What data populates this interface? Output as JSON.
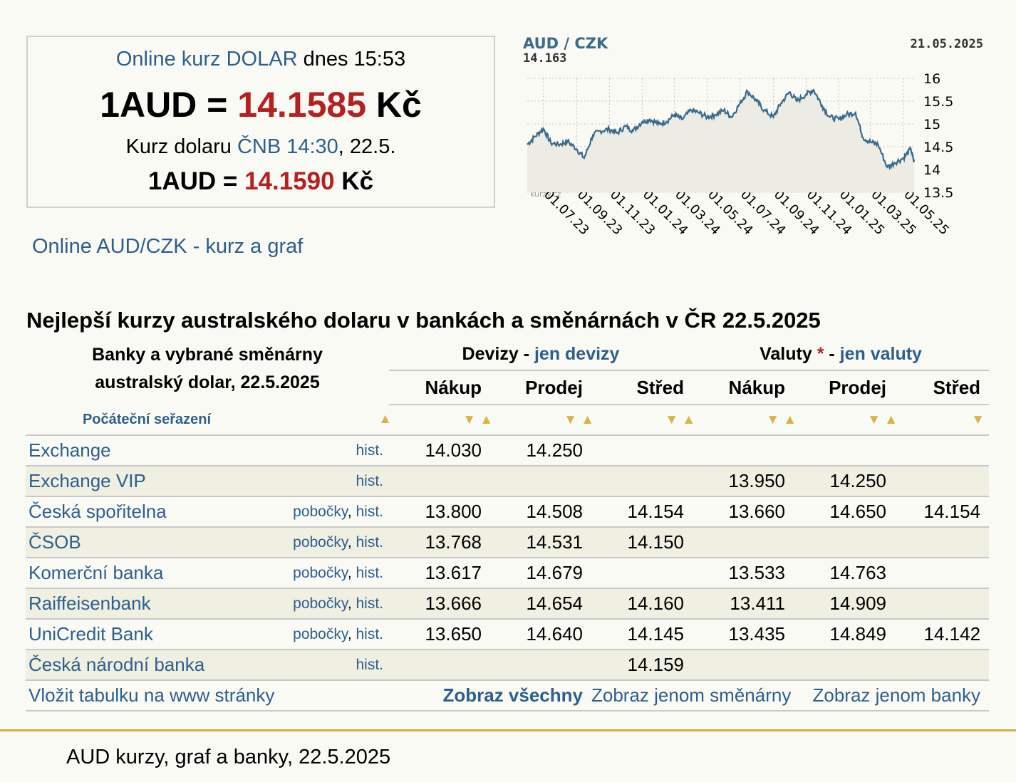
{
  "rate_box": {
    "line1_link": "Online kurz DOLAR",
    "line1_rest": " dnes 15:53",
    "online_left": "1AUD = ",
    "online_value": "14.1585",
    "online_unit": " Kč",
    "line3_pre": "Kurz dolaru ",
    "line3_link": "ČNB 14:30",
    "line3_post": ", 22.5.",
    "cnb_left": "1AUD = ",
    "cnb_value": "14.1590",
    "cnb_unit": " Kč"
  },
  "online_link": "Online AUD/CZK - kurz a graf",
  "chart_data": {
    "type": "line",
    "title": "AUD / CZK",
    "current_value": "14.163",
    "date": "21.05.2025",
    "watermark": "AUD / CZK",
    "logo": "kurzy.cz",
    "x_ticks": [
      "01.07.23",
      "01.09.23",
      "01.11.23",
      "01.01.24",
      "01.03.24",
      "01.05.24",
      "01.07.24",
      "01.09.24",
      "01.11.24",
      "01.01.25",
      "01.03.25",
      "01.05.25"
    ],
    "y_ticks": [
      "16",
      "15.5",
      "15",
      "14.5",
      "14",
      "13.5"
    ],
    "ylim": [
      13.5,
      16
    ],
    "grid": true,
    "line_color": "#3a6a8c",
    "x": [
      "2023-06-01",
      "2023-06-15",
      "2023-07-01",
      "2023-07-15",
      "2023-08-01",
      "2023-08-15",
      "2023-09-01",
      "2023-09-15",
      "2023-10-01",
      "2023-10-15",
      "2023-11-01",
      "2023-11-15",
      "2023-12-01",
      "2023-12-15",
      "2024-01-01",
      "2024-01-15",
      "2024-02-01",
      "2024-02-15",
      "2024-03-01",
      "2024-03-15",
      "2024-04-01",
      "2024-04-15",
      "2024-05-01",
      "2024-05-15",
      "2024-06-01",
      "2024-06-15",
      "2024-07-01",
      "2024-07-15",
      "2024-08-01",
      "2024-08-15",
      "2024-09-01",
      "2024-09-15",
      "2024-10-01",
      "2024-10-15",
      "2024-11-01",
      "2024-11-15",
      "2024-12-01",
      "2024-12-15",
      "2025-01-01",
      "2025-01-15",
      "2025-02-01",
      "2025-02-15",
      "2025-03-01",
      "2025-03-15",
      "2025-04-01",
      "2025-04-15",
      "2025-05-01",
      "2025-05-15",
      "2025-05-21"
    ],
    "values": [
      14.55,
      14.72,
      14.9,
      14.58,
      14.55,
      14.62,
      14.45,
      14.25,
      14.75,
      14.85,
      14.88,
      14.8,
      14.95,
      14.85,
      15.05,
      15.1,
      15.0,
      15.05,
      15.2,
      15.1,
      15.3,
      15.25,
      15.15,
      15.2,
      15.3,
      15.15,
      15.45,
      15.72,
      15.5,
      15.3,
      15.15,
      15.45,
      15.7,
      15.5,
      15.65,
      15.75,
      15.4,
      15.15,
      15.1,
      15.2,
      15.25,
      14.7,
      14.6,
      14.55,
      14.05,
      14.15,
      14.25,
      14.45,
      14.163
    ]
  },
  "section_title": "Nejlepší kurzy australského dolaru v bankách a směnárnách v ČR 22.5.2025",
  "table": {
    "head_line1": "Banky a vybrané směnárny",
    "head_line2": "australský dolar, 22.5.2025",
    "devizy": "Devizy",
    "devizy_link": "jen devizy",
    "valuty": "Valuty",
    "valuty_star": "*",
    "valuty_link": "jen valuty",
    "group_sep": " - ",
    "cols": [
      "Nákup",
      "Prodej",
      "Střed",
      "Nákup",
      "Prodej",
      "Střed"
    ],
    "sort_label": "Počáteční seřazení",
    "link_branches": "pobočky",
    "link_hist": "hist.",
    "rows": [
      {
        "name": "Exchange",
        "branches": false,
        "v": [
          "14.030",
          "14.250",
          "",
          "",
          "",
          ""
        ]
      },
      {
        "name": "Exchange VIP",
        "branches": false,
        "v": [
          "",
          "",
          "",
          "13.950",
          "14.250",
          ""
        ]
      },
      {
        "name": "Česká spořitelna",
        "branches": true,
        "v": [
          "13.800",
          "14.508",
          "14.154",
          "13.660",
          "14.650",
          "14.154"
        ]
      },
      {
        "name": "ČSOB",
        "branches": true,
        "v": [
          "13.768",
          "14.531",
          "14.150",
          "",
          "",
          ""
        ]
      },
      {
        "name": "Komerční banka",
        "branches": true,
        "v": [
          "13.617",
          "14.679",
          "",
          "13.533",
          "14.763",
          ""
        ]
      },
      {
        "name": "Raiffeisenbank",
        "branches": true,
        "v": [
          "13.666",
          "14.654",
          "14.160",
          "13.411",
          "14.909",
          ""
        ]
      },
      {
        "name": "UniCredit Bank",
        "branches": true,
        "v": [
          "13.650",
          "14.640",
          "14.145",
          "13.435",
          "14.849",
          "14.142"
        ]
      },
      {
        "name": "Česká národní banka",
        "branches": false,
        "v": [
          "",
          "",
          "14.159",
          "",
          "",
          ""
        ]
      }
    ],
    "footer": {
      "embed": "Vložit tabulku na www stránky",
      "show_all": "Zobraz všechny",
      "only_exchanges": "Zobraz jenom směnárny",
      "only_banks": "Zobraz jenom banky"
    }
  },
  "footer_text": "AUD kurzy, graf a banky, 22.5.2025"
}
